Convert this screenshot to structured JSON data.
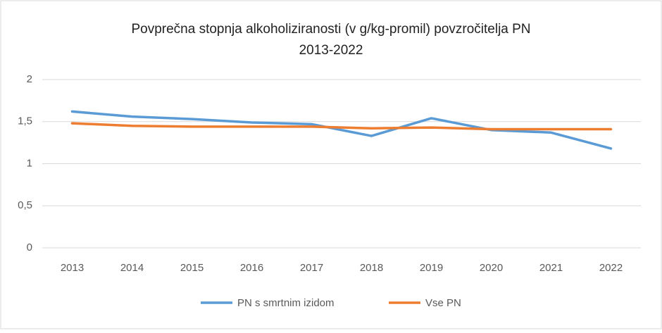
{
  "chart_data": {
    "type": "line",
    "title": "Povprečna stopnja alkoholiziranosti (v g/kg-promil) povzročitelja PN",
    "subtitle": "2013-2022",
    "categories": [
      "2013",
      "2014",
      "2015",
      "2016",
      "2017",
      "2018",
      "2019",
      "2020",
      "2021",
      "2022"
    ],
    "series": [
      {
        "name": "PN s smrtnim izidom",
        "color": "#5b9bd5",
        "values": [
          1.62,
          1.56,
          1.53,
          1.49,
          1.47,
          1.33,
          1.54,
          1.4,
          1.37,
          1.18
        ]
      },
      {
        "name": "Vse PN",
        "color": "#ed7d31",
        "values": [
          1.48,
          1.45,
          1.44,
          1.44,
          1.44,
          1.42,
          1.43,
          1.41,
          1.41,
          1.41
        ]
      }
    ],
    "ylim": [
      0,
      2
    ],
    "yticks": [
      0,
      {
        "value": 0.5,
        "label": "0,5"
      },
      1,
      {
        "value": 1.5,
        "label": "1,5"
      },
      2
    ],
    "grid": true,
    "legend": "bottom"
  }
}
